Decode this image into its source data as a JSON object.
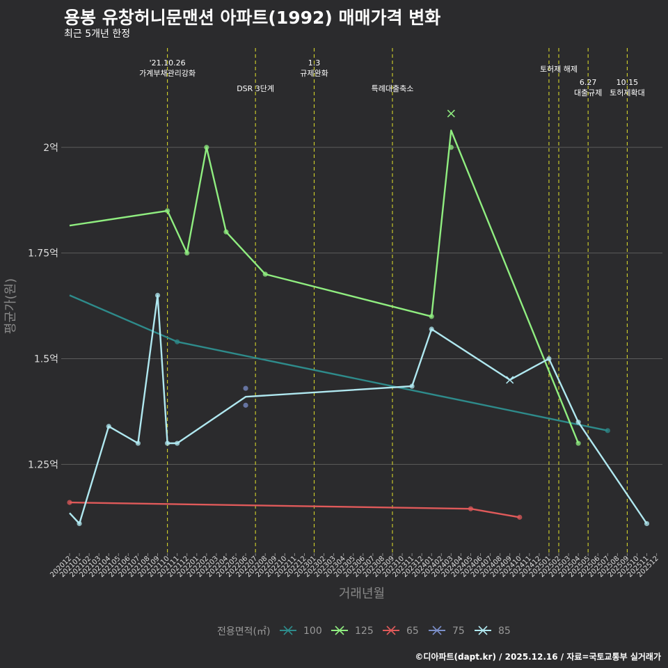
{
  "title": "용봉 유창허니문맨션 아파트(1992) 매매가격 변화",
  "subtitle": "최근 5개년 한정",
  "caption": "©디아파트(dapt.kr) / 2025.12.16 / 자료=국토교통부 실거래가",
  "chart_data": {
    "type": "line",
    "xlabel": "거래년월",
    "ylabel": "평균가(원)",
    "x_ticks": [
      "202012",
      "202101",
      "202102",
      "202103",
      "202104",
      "202105",
      "202106",
      "202107",
      "202108",
      "202109",
      "202110",
      "202111",
      "202112",
      "202201",
      "202202",
      "202203",
      "202204",
      "202205",
      "202206",
      "202207",
      "202208",
      "202209",
      "202210",
      "202211",
      "202212",
      "202301",
      "202302",
      "202303",
      "202304",
      "202305",
      "202306",
      "202307",
      "202308",
      "202309",
      "202310",
      "202311",
      "202312",
      "202401",
      "202402",
      "202403",
      "202404",
      "202405",
      "202406",
      "202407",
      "202408",
      "202409",
      "202410",
      "202411",
      "202412",
      "202501",
      "202502",
      "202503",
      "202504",
      "202505",
      "202506",
      "202507",
      "202508",
      "202509",
      "202510",
      "202511",
      "202512"
    ],
    "y_ticks": [
      {
        "value": 1.25,
        "label": "1.25억"
      },
      {
        "value": 1.5,
        "label": "1.5억"
      },
      {
        "value": 1.75,
        "label": "1.75억"
      },
      {
        "value": 2.0,
        "label": "2억"
      }
    ],
    "ylim": [
      1.04,
      2.235
    ],
    "grid": true,
    "legend_title": "전용면적(㎡)",
    "legend_position": "bottom",
    "series": [
      {
        "name": "100",
        "color": "#2e8b8b",
        "line": [
          [
            0,
            1.65
          ],
          [
            11,
            1.54
          ],
          [
            55,
            1.33
          ]
        ],
        "points": [
          [
            11,
            1.54
          ],
          [
            55,
            1.33
          ]
        ],
        "x_marks": []
      },
      {
        "name": "125",
        "color": "#90ee80",
        "line": [
          [
            0,
            1.815
          ],
          [
            10,
            1.85
          ],
          [
            12,
            1.75
          ],
          [
            14,
            2.0
          ],
          [
            16,
            1.8
          ],
          [
            20,
            1.7
          ],
          [
            37,
            1.6
          ],
          [
            39,
            2.04
          ],
          [
            52,
            1.3
          ]
        ],
        "points": [
          [
            10,
            1.85
          ],
          [
            12,
            1.75
          ],
          [
            14,
            2.0
          ],
          [
            16,
            1.8
          ],
          [
            20,
            1.7
          ],
          [
            37,
            1.6
          ],
          [
            39,
            2.0
          ],
          [
            52,
            1.3
          ]
        ],
        "x_marks": [
          [
            39,
            2.08
          ]
        ]
      },
      {
        "name": "65",
        "color": "#e05a5a",
        "line": [
          [
            0,
            1.16
          ],
          [
            41,
            1.145
          ],
          [
            46,
            1.125
          ]
        ],
        "points": [
          [
            0,
            1.16
          ],
          [
            41,
            1.145
          ],
          [
            46,
            1.125
          ]
        ],
        "x_marks": []
      },
      {
        "name": "75",
        "color": "#7b8ec8",
        "line": [],
        "points": [
          [
            18,
            1.43
          ],
          [
            18,
            1.39
          ]
        ],
        "x_marks": []
      },
      {
        "name": "85",
        "color": "#b0e8f0",
        "line": [
          [
            0,
            1.135
          ],
          [
            1,
            1.11
          ],
          [
            4,
            1.34
          ],
          [
            7,
            1.3
          ],
          [
            9,
            1.65
          ],
          [
            10,
            1.3
          ],
          [
            11,
            1.3
          ],
          [
            18,
            1.41
          ],
          [
            35,
            1.435
          ],
          [
            37,
            1.57
          ],
          [
            45,
            1.45
          ],
          [
            49,
            1.5
          ],
          [
            52,
            1.35
          ],
          [
            59,
            1.11
          ]
        ],
        "points": [
          [
            1,
            1.11
          ],
          [
            4,
            1.34
          ],
          [
            7,
            1.3
          ],
          [
            9,
            1.65
          ],
          [
            10,
            1.3
          ],
          [
            11,
            1.3
          ],
          [
            35,
            1.435
          ],
          [
            37,
            1.57
          ],
          [
            49,
            1.5
          ],
          [
            52,
            1.35
          ],
          [
            59,
            1.11
          ]
        ],
        "x_marks": [
          [
            45,
            1.45
          ]
        ]
      }
    ],
    "annotations": [
      {
        "x": 10,
        "lines": [
          "'21.10.26",
          "가계부채관리강화"
        ],
        "row": "top"
      },
      {
        "x": 19,
        "lines": [
          "DSR 3단계"
        ],
        "row": "low"
      },
      {
        "x": 25,
        "lines": [
          "1.3",
          "규제완화"
        ],
        "row": "top"
      },
      {
        "x": 33,
        "lines": [
          "특례대출축소"
        ],
        "row": "low"
      },
      {
        "x": 49,
        "lines": [],
        "row": "none"
      },
      {
        "x": 50,
        "lines": [
          "토허제 해제"
        ],
        "row": "mid"
      },
      {
        "x": 53,
        "lines": [
          "6.27",
          "대출규제"
        ],
        "row": "mid2"
      },
      {
        "x": 57,
        "lines": [
          "10.15",
          "토허제확대"
        ],
        "row": "mid2"
      }
    ]
  }
}
